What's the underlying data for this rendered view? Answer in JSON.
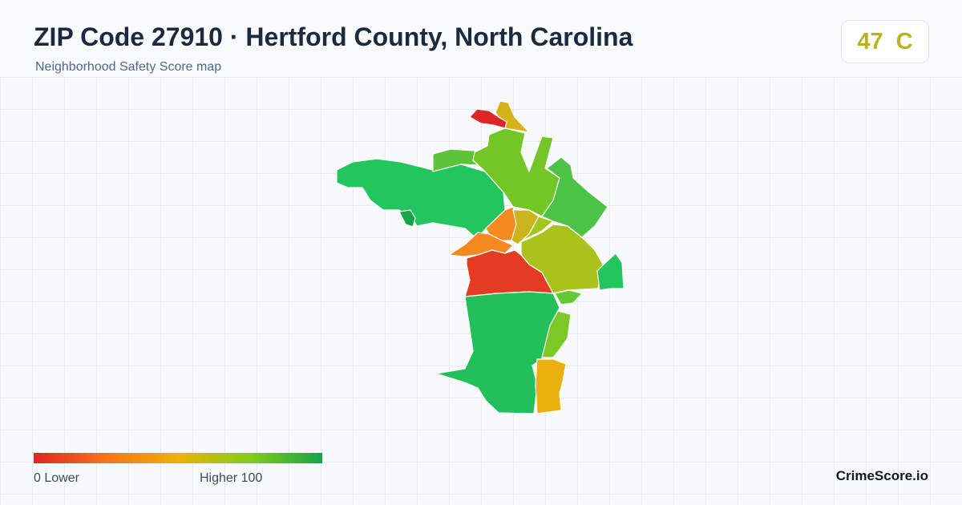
{
  "header": {
    "title": "ZIP Code 27910 · Hertford County, North Carolina",
    "subtitle": "Neighborhood Safety Score map"
  },
  "score": {
    "value": "47",
    "grade": "C",
    "color": "#b9b31c"
  },
  "legend": {
    "low_label": "0  Lower",
    "high_label": "Higher  100",
    "colors": [
      "#dc2626",
      "#f97316",
      "#eab308",
      "#84cc16",
      "#16a34a"
    ]
  },
  "brand": "CrimeScore.io",
  "map": {
    "regions": [
      {
        "id": "northwest-large",
        "color": "#22c55e"
      },
      {
        "id": "northwest-pocket",
        "color": "#16a34a"
      },
      {
        "id": "north-tip-red",
        "color": "#dc2626"
      },
      {
        "id": "north-tip-yellow",
        "color": "#d4b318"
      },
      {
        "id": "north-small-green",
        "color": "#5cc43a"
      },
      {
        "id": "north-central",
        "color": "#72c727"
      },
      {
        "id": "northeast",
        "color": "#4cc247"
      },
      {
        "id": "center-orange-north",
        "color": "#f58a1f"
      },
      {
        "id": "center-yellow",
        "color": "#ccb51c"
      },
      {
        "id": "center-yellow-green",
        "color": "#a2c61d"
      },
      {
        "id": "center-orange-west",
        "color": "#f5891f"
      },
      {
        "id": "east-central",
        "color": "#aac31c"
      },
      {
        "id": "east-edge",
        "color": "#22c55e"
      },
      {
        "id": "center-red",
        "color": "#e23d22"
      },
      {
        "id": "east-strip",
        "color": "#66c835"
      },
      {
        "id": "south-large",
        "color": "#22c05a"
      },
      {
        "id": "southeast-green",
        "color": "#7cc826"
      },
      {
        "id": "southeast-orange",
        "color": "#eab10e"
      }
    ]
  }
}
